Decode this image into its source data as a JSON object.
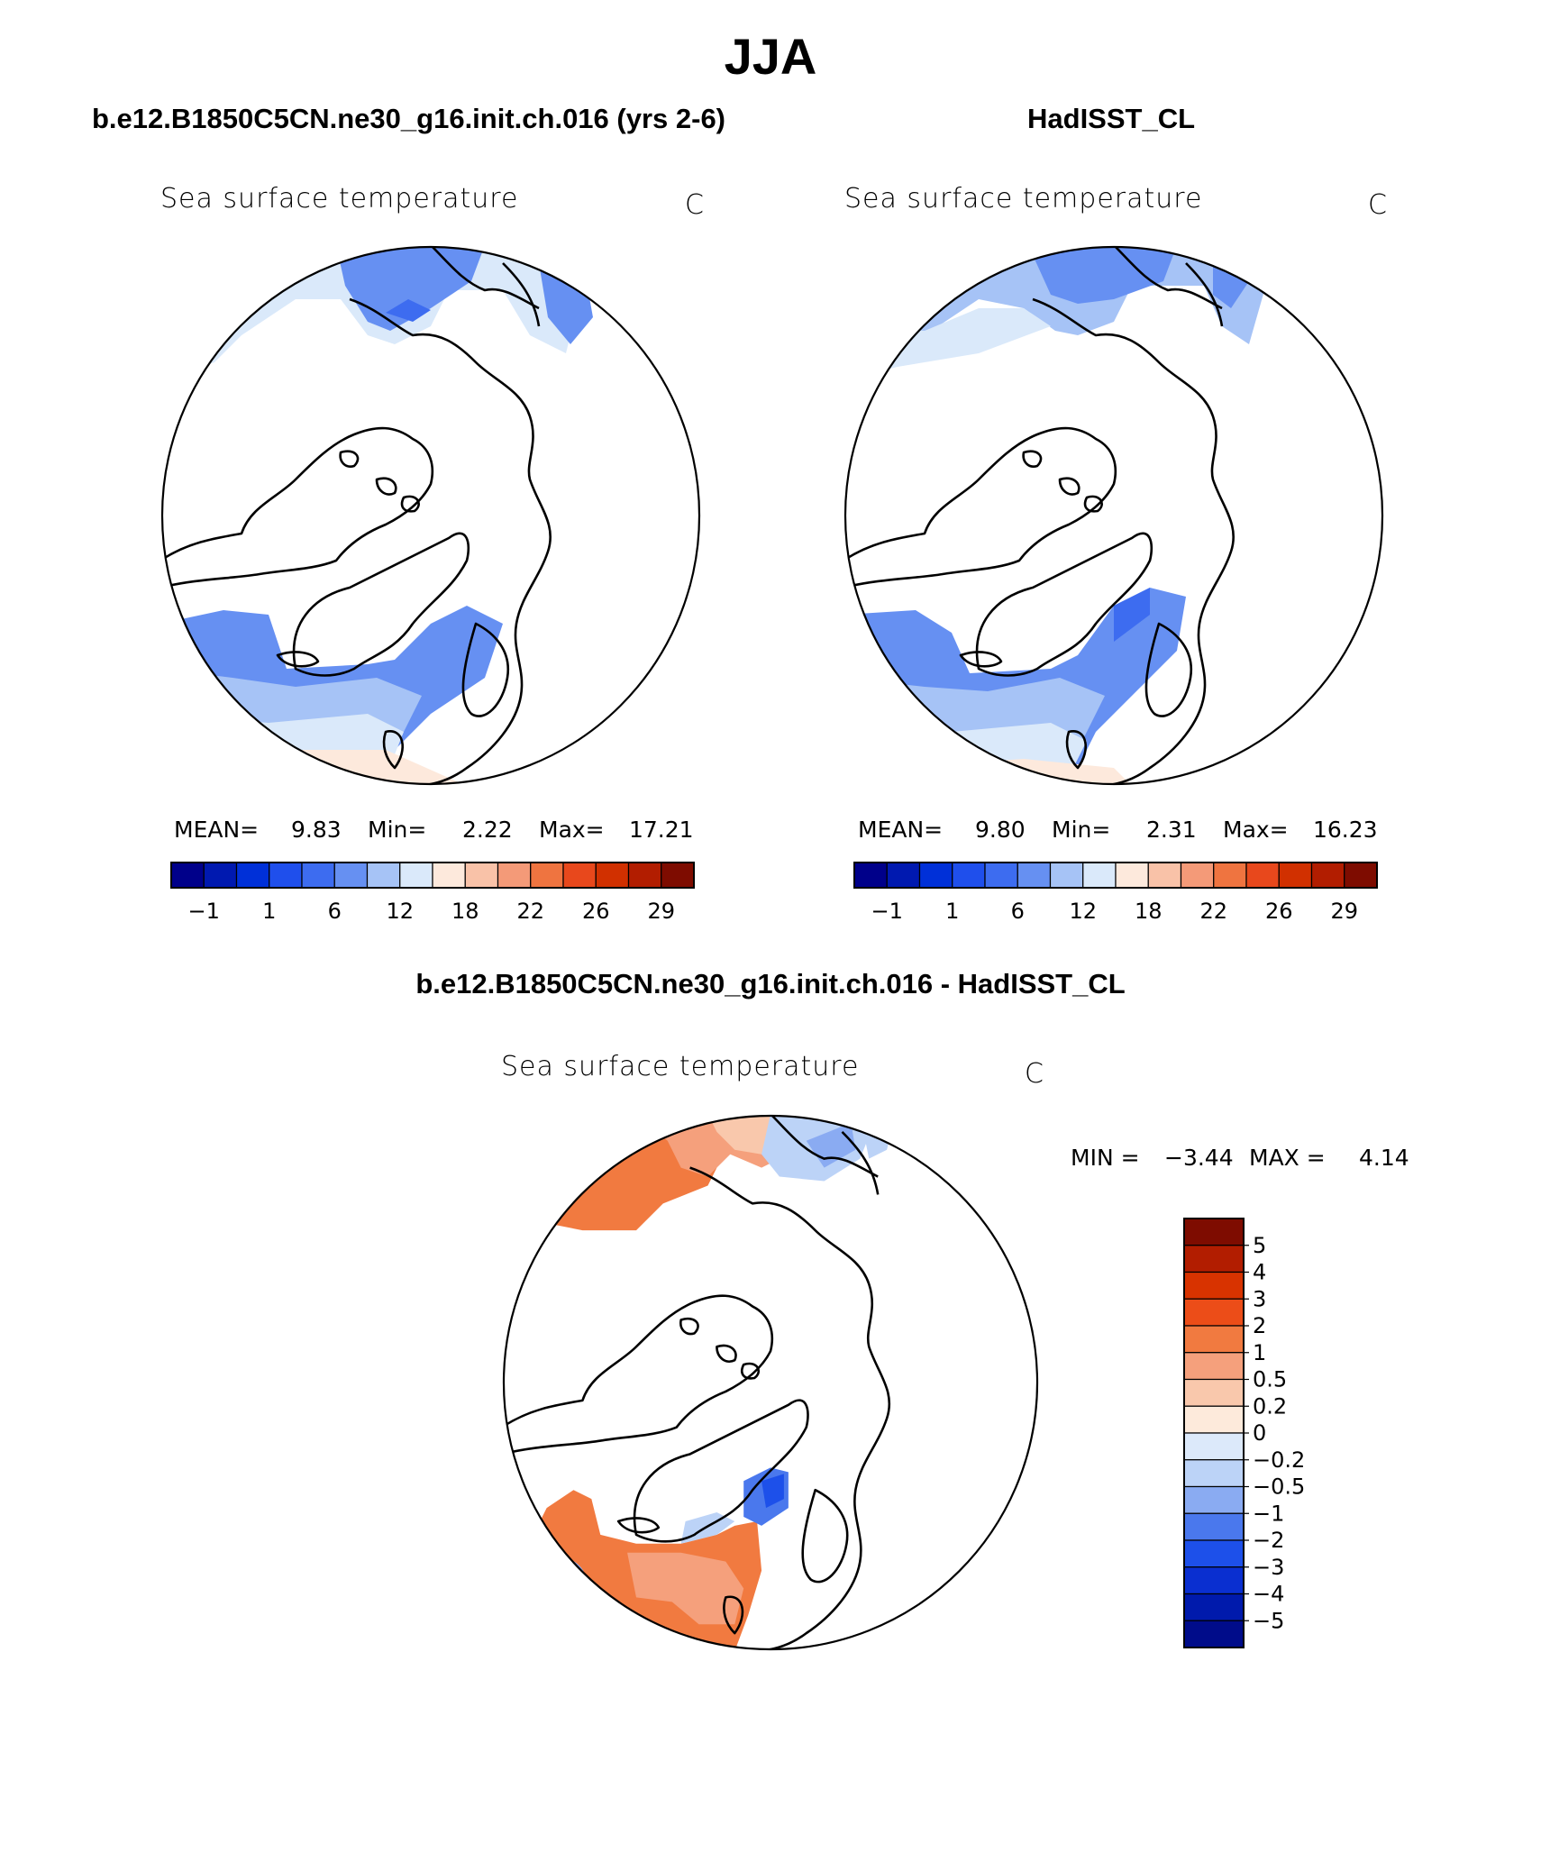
{
  "title": "JJA",
  "panels": [
    {
      "title": "b.e12.B1850C5CN.ne30_g16.init.ch.016 (yrs 2-6)",
      "field": "Sea surface temperature",
      "units": "C",
      "stats": {
        "mean_label": "MEAN=",
        "mean": "9.83",
        "min_label": "Min=",
        "min": "2.22",
        "max_label": "Max=",
        "max": "17.21"
      }
    },
    {
      "title": "HadISST_CL",
      "field": "Sea surface temperature",
      "units": "C",
      "stats": {
        "mean_label": "MEAN=",
        "mean": "9.80",
        "min_label": "Min=",
        "min": "2.31",
        "max_label": "Max=",
        "max": "16.23"
      }
    }
  ],
  "diff": {
    "title": "b.e12.B1850C5CN.ne30_g16.init.ch.016 - HadISST_CL",
    "field": "Sea surface temperature",
    "units": "C",
    "min_label": "MIN =",
    "min": "−3.44",
    "max_label": "MAX =",
    "max": "4.14"
  },
  "abs_colorbar": {
    "colors": [
      "#00008a",
      "#0019b0",
      "#0030d8",
      "#1f4fec",
      "#3d6cf0",
      "#6690f2",
      "#a6c3f6",
      "#dae9fa",
      "#fde9dc",
      "#f9c2a8",
      "#f49a78",
      "#ef7440",
      "#e8481c",
      "#d13000",
      "#b21d00",
      "#7e0c00"
    ],
    "ticks": [
      "−1",
      "1",
      "6",
      "12",
      "18",
      "22",
      "26",
      "29"
    ]
  },
  "diff_colorbar": {
    "colors": [
      "#7e0c00",
      "#b21d00",
      "#d83300",
      "#ec4d18",
      "#f17a40",
      "#f5a07c",
      "#f9c8ac",
      "#fdeadb",
      "#dce9fa",
      "#bcd3f7",
      "#8aabf2",
      "#4a78ed",
      "#1d50ea",
      "#0a2fd0",
      "#001aac",
      "#000c8a"
    ],
    "labels": [
      "5",
      "4",
      "3",
      "2",
      "1",
      "0.5",
      "0.2",
      "0",
      "−0.2",
      "−0.5",
      "−1",
      "−2",
      "−3",
      "−4",
      "−5"
    ]
  },
  "colors": {
    "sst_light": "#dae9fa",
    "sst_mid": "#a6c3f6",
    "sst_blue": "#6690f2",
    "sst_dark": "#3d6cf0",
    "sst_warm": "#fde9dc",
    "diff_warm": "#f17a40",
    "diff_peach": "#f5a07c"
  }
}
